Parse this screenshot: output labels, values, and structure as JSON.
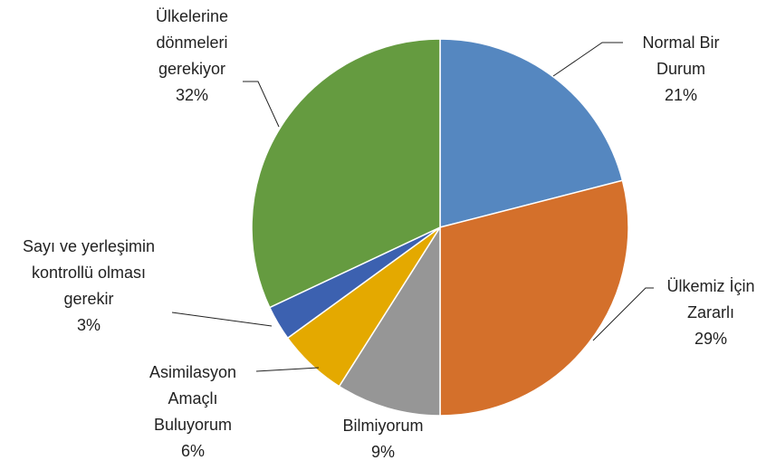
{
  "chart_data": {
    "type": "pie",
    "categories": [
      "Normal Bir Durum",
      "Ülkemiz İçin Zararlı",
      "Bilmiyorum",
      "Asimilasyon Amaçlı Buluyorum",
      "Sayı ve yerleşimin kontrollü olması gerekir",
      "Ülkelerine dönmeleri gerekiyor"
    ],
    "values": [
      21,
      29,
      9,
      6,
      3,
      32
    ],
    "value_labels": [
      "21%",
      "29%",
      "9%",
      "6%",
      "3%",
      "32%"
    ],
    "colors": [
      "#5587c0",
      "#d4702b",
      "#969696",
      "#e4a900",
      "#3c61b0",
      "#659b40"
    ]
  }
}
